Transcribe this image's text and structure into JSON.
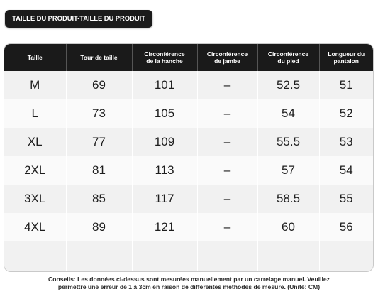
{
  "title": "TAILLE DU PRODUIT-TAILLE DU PRODUIT",
  "table": {
    "headers": [
      [
        "Taille",
        ""
      ],
      [
        "Tour de taille",
        ""
      ],
      [
        "Circonférence",
        "de la hanche"
      ],
      [
        "Circonférence",
        "de jambe"
      ],
      [
        "Circonférence",
        "du pied"
      ],
      [
        "Longueur du",
        "pantalon"
      ]
    ],
    "rows": [
      [
        "M",
        "69",
        "101",
        "–",
        "52.5",
        "51"
      ],
      [
        "L",
        "73",
        "105",
        "–",
        "54",
        "52"
      ],
      [
        "XL",
        "77",
        "109",
        "–",
        "55.5",
        "53"
      ],
      [
        "2XL",
        "81",
        "113",
        "–",
        "57",
        "54"
      ],
      [
        "3XL",
        "85",
        "117",
        "–",
        "58.5",
        "55"
      ],
      [
        "4XL",
        "89",
        "121",
        "–",
        "60",
        "56"
      ]
    ]
  },
  "note": {
    "line1": "Conseils: Les données ci-dessus sont mesurées manuellement par un carrelage manuel. Veuillez",
    "line2": "permettre une erreur de 1 à 3cm en raison de différentes méthodes de mesure. (Unité: CM)"
  }
}
